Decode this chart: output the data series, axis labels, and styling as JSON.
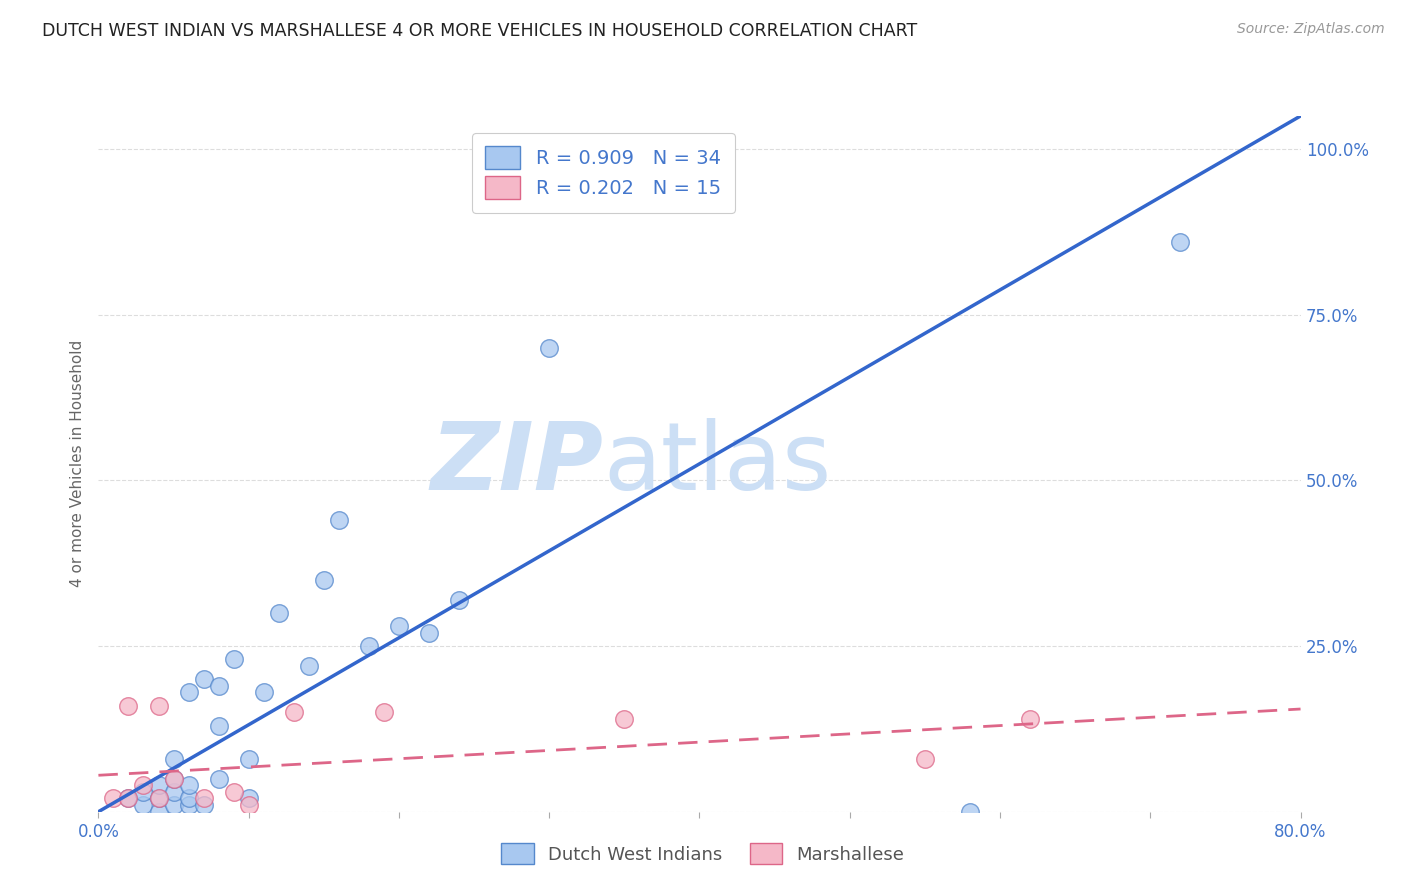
{
  "title": "DUTCH WEST INDIAN VS MARSHALLESE 4 OR MORE VEHICLES IN HOUSEHOLD CORRELATION CHART",
  "source": "Source: ZipAtlas.com",
  "ylabel": "4 or more Vehicles in Household",
  "xmin": 0.0,
  "xmax": 0.8,
  "ymin": 0.0,
  "ymax": 1.05,
  "blue_scatter_x": [
    0.02,
    0.03,
    0.03,
    0.04,
    0.04,
    0.04,
    0.05,
    0.05,
    0.05,
    0.05,
    0.06,
    0.06,
    0.06,
    0.06,
    0.07,
    0.07,
    0.08,
    0.08,
    0.08,
    0.09,
    0.1,
    0.1,
    0.11,
    0.12,
    0.14,
    0.15,
    0.16,
    0.18,
    0.2,
    0.22,
    0.24,
    0.3,
    0.58,
    0.72
  ],
  "blue_scatter_y": [
    0.02,
    0.01,
    0.03,
    0.0,
    0.02,
    0.04,
    0.01,
    0.03,
    0.05,
    0.08,
    0.01,
    0.02,
    0.04,
    0.18,
    0.01,
    0.2,
    0.05,
    0.13,
    0.19,
    0.23,
    0.02,
    0.08,
    0.18,
    0.3,
    0.22,
    0.35,
    0.44,
    0.25,
    0.28,
    0.27,
    0.32,
    0.7,
    0.0,
    0.86
  ],
  "pink_scatter_x": [
    0.01,
    0.02,
    0.02,
    0.03,
    0.04,
    0.04,
    0.05,
    0.07,
    0.09,
    0.1,
    0.13,
    0.19,
    0.35,
    0.55,
    0.62
  ],
  "pink_scatter_y": [
    0.02,
    0.02,
    0.16,
    0.04,
    0.02,
    0.16,
    0.05,
    0.02,
    0.03,
    0.01,
    0.15,
    0.15,
    0.14,
    0.08,
    0.14
  ],
  "blue_line_x": [
    0.0,
    0.8
  ],
  "blue_line_y": [
    0.0,
    1.05
  ],
  "pink_line_x": [
    0.0,
    0.8
  ],
  "pink_line_y": [
    0.055,
    0.155
  ],
  "blue_color": "#a8c8f0",
  "blue_edge_color": "#5588cc",
  "pink_color": "#f5b8c8",
  "pink_edge_color": "#dd6688",
  "blue_line_color": "#3366cc",
  "pink_line_color": "#dd6688",
  "pink_line_dash": [
    7,
    4
  ],
  "legend_label_blue": "Dutch West Indians",
  "legend_label_pink": "Marshallese",
  "legend_r_blue": "R = 0.909",
  "legend_n_blue": "N = 34",
  "legend_r_pink": "R = 0.202",
  "legend_n_pink": "N = 15",
  "watermark_zip": "ZIP",
  "watermark_atlas": "atlas",
  "watermark_color_zip": "#ccdff5",
  "watermark_color_atlas": "#ccdff5",
  "title_color": "#222222",
  "axis_tick_color": "#4477cc",
  "ylabel_color": "#666666",
  "grid_color": "#dddddd",
  "background_color": "#ffffff",
  "legend_text_color": "#4477cc"
}
